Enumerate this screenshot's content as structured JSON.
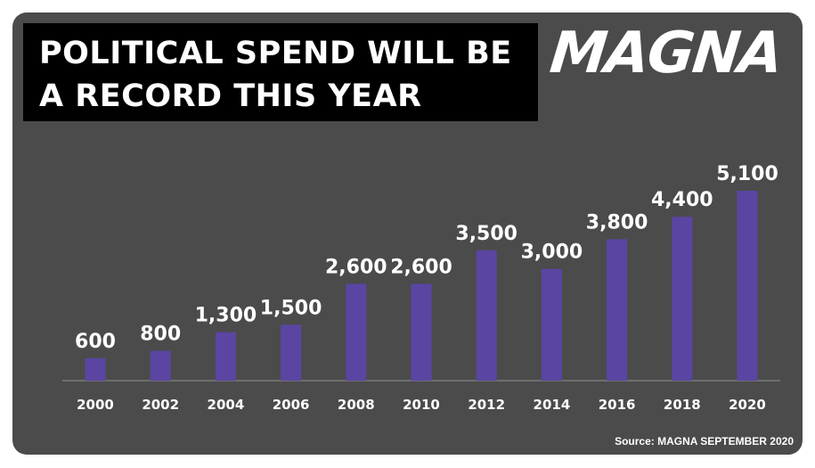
{
  "header": {
    "title_line1": "POLITICAL SPEND WILL BE",
    "title_line2": "A RECORD THIS YEAR",
    "logo_text": "MAGNA"
  },
  "footer": {
    "source": "Source: MAGNA SEPTEMBER 2020"
  },
  "colors": {
    "background": "#4b4b4b",
    "bar": "#5b45a3",
    "title_box": "#000000",
    "text": "#ffffff"
  },
  "chart_data": {
    "type": "bar",
    "title": "POLITICAL SPEND WILL BE A RECORD THIS YEAR",
    "xlabel": "",
    "ylabel": "",
    "categories": [
      "2000",
      "2002",
      "2004",
      "2006",
      "2008",
      "2010",
      "2012",
      "2014",
      "2016",
      "2018",
      "2020"
    ],
    "values": [
      600,
      800,
      1300,
      1500,
      2600,
      2600,
      3500,
      3000,
      3800,
      4400,
      5100
    ],
    "value_labels": [
      "600",
      "800",
      "1,300",
      "1,500",
      "2,600",
      "2,600",
      "3,500",
      "3,000",
      "3,800",
      "4,400",
      "5,100"
    ],
    "ylim": [
      0,
      5100
    ],
    "grid": false,
    "legend": "none"
  }
}
